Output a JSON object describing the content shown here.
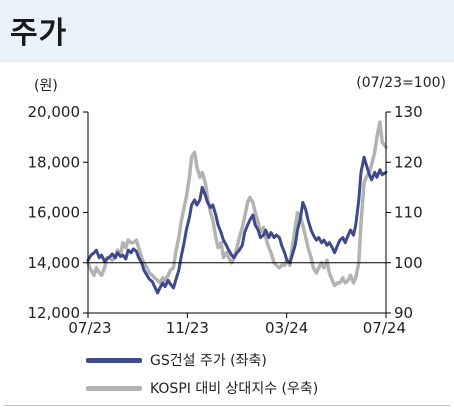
{
  "title": "주가",
  "unit_left": "(원)",
  "unit_right": "(07/23=100)",
  "colors": {
    "primary": "#3f4a8a",
    "secondary": "#b3b3b3",
    "header_bg": "#e9f1fa"
  },
  "chart_data": {
    "type": "line",
    "x_ticks": [
      "07/23",
      "11/23",
      "03/24",
      "07/24"
    ],
    "y_left": {
      "ticks": [
        "12,000",
        "14,000",
        "16,000",
        "18,000",
        "20,000"
      ],
      "lim": [
        12000,
        20000
      ]
    },
    "y_right": {
      "ticks": [
        "90",
        "100",
        "110",
        "120",
        "130"
      ],
      "lim": [
        90,
        130
      ]
    },
    "reference_line": 100,
    "x_range": [
      "2023-07-03",
      "2024-07-31"
    ],
    "series": [
      {
        "name": "GS건설 주가 (좌축)",
        "axis": "left",
        "points": [
          [
            "2023-07-03",
            14100
          ],
          [
            "2023-07-07",
            14300
          ],
          [
            "2023-07-11",
            14400
          ],
          [
            "2023-07-14",
            14500
          ],
          [
            "2023-07-18",
            14200
          ],
          [
            "2023-07-21",
            14300
          ],
          [
            "2023-07-25",
            14050
          ],
          [
            "2023-07-28",
            14150
          ],
          [
            "2023-08-01",
            14250
          ],
          [
            "2023-08-04",
            14350
          ],
          [
            "2023-08-08",
            14200
          ],
          [
            "2023-08-11",
            14400
          ],
          [
            "2023-08-15",
            14250
          ],
          [
            "2023-08-18",
            14300
          ],
          [
            "2023-08-22",
            14150
          ],
          [
            "2023-08-25",
            14500
          ],
          [
            "2023-08-29",
            14400
          ],
          [
            "2023-09-01",
            14550
          ],
          [
            "2023-09-05",
            14450
          ],
          [
            "2023-09-08",
            14200
          ],
          [
            "2023-09-12",
            14000
          ],
          [
            "2023-09-15",
            13700
          ],
          [
            "2023-09-19",
            13500
          ],
          [
            "2023-09-22",
            13350
          ],
          [
            "2023-09-26",
            13250
          ],
          [
            "2023-09-29",
            13050
          ],
          [
            "2023-10-03",
            12800
          ],
          [
            "2023-10-06",
            13000
          ],
          [
            "2023-10-10",
            13200
          ],
          [
            "2023-10-13",
            13050
          ],
          [
            "2023-10-17",
            13300
          ],
          [
            "2023-10-20",
            13150
          ],
          [
            "2023-10-24",
            13000
          ],
          [
            "2023-10-27",
            13300
          ],
          [
            "2023-10-31",
            13700
          ],
          [
            "2023-11-03",
            14200
          ],
          [
            "2023-11-07",
            14800
          ],
          [
            "2023-11-10",
            15300
          ],
          [
            "2023-11-14",
            15800
          ],
          [
            "2023-11-17",
            16300
          ],
          [
            "2023-11-21",
            16500
          ],
          [
            "2023-11-24",
            16300
          ],
          [
            "2023-11-28",
            16500
          ],
          [
            "2023-12-01",
            17000
          ],
          [
            "2023-12-05",
            16700
          ],
          [
            "2023-12-08",
            16400
          ],
          [
            "2023-12-12",
            16200
          ],
          [
            "2023-12-15",
            16300
          ],
          [
            "2023-12-19",
            15900
          ],
          [
            "2023-12-22",
            15500
          ],
          [
            "2023-12-26",
            15200
          ],
          [
            "2023-12-29",
            14900
          ],
          [
            "2024-01-02",
            14700
          ],
          [
            "2024-01-05",
            14500
          ],
          [
            "2024-01-09",
            14300
          ],
          [
            "2024-01-12",
            14200
          ],
          [
            "2024-01-16",
            14400
          ],
          [
            "2024-01-19",
            14500
          ],
          [
            "2024-01-23",
            14700
          ],
          [
            "2024-01-26",
            15200
          ],
          [
            "2024-01-30",
            15500
          ],
          [
            "2024-02-02",
            15700
          ],
          [
            "2024-02-06",
            15900
          ],
          [
            "2024-02-09",
            15500
          ],
          [
            "2024-02-13",
            15300
          ],
          [
            "2024-02-16",
            15000
          ],
          [
            "2024-02-20",
            15100
          ],
          [
            "2024-02-23",
            15300
          ],
          [
            "2024-02-27",
            15000
          ],
          [
            "2024-03-01",
            15200
          ],
          [
            "2024-03-05",
            15000
          ],
          [
            "2024-03-08",
            15100
          ],
          [
            "2024-03-12",
            15000
          ],
          [
            "2024-03-15",
            14700
          ],
          [
            "2024-03-19",
            14400
          ],
          [
            "2024-03-22",
            14100
          ],
          [
            "2024-03-26",
            14000
          ],
          [
            "2024-03-29",
            14300
          ],
          [
            "2024-04-02",
            14700
          ],
          [
            "2024-04-05",
            15300
          ],
          [
            "2024-04-09",
            15800
          ],
          [
            "2024-04-12",
            16400
          ],
          [
            "2024-04-16",
            16100
          ],
          [
            "2024-04-19",
            15700
          ],
          [
            "2024-04-23",
            15300
          ],
          [
            "2024-04-26",
            15100
          ],
          [
            "2024-04-30",
            14900
          ],
          [
            "2024-05-03",
            15000
          ],
          [
            "2024-05-07",
            14800
          ],
          [
            "2024-05-10",
            14900
          ],
          [
            "2024-05-14",
            14700
          ],
          [
            "2024-05-17",
            14800
          ],
          [
            "2024-05-21",
            14600
          ],
          [
            "2024-05-24",
            14400
          ],
          [
            "2024-05-28",
            14700
          ],
          [
            "2024-05-31",
            14900
          ],
          [
            "2024-06-04",
            15000
          ],
          [
            "2024-06-07",
            14800
          ],
          [
            "2024-06-11",
            15100
          ],
          [
            "2024-06-14",
            15300
          ],
          [
            "2024-06-18",
            15100
          ],
          [
            "2024-06-21",
            15500
          ],
          [
            "2024-06-25",
            16500
          ],
          [
            "2024-06-28",
            17600
          ],
          [
            "2024-07-02",
            18200
          ],
          [
            "2024-07-05",
            17900
          ],
          [
            "2024-07-09",
            17500
          ],
          [
            "2024-07-12",
            17300
          ],
          [
            "2024-07-16",
            17600
          ],
          [
            "2024-07-19",
            17400
          ],
          [
            "2024-07-23",
            17700
          ],
          [
            "2024-07-26",
            17500
          ],
          [
            "2024-07-31",
            17600
          ]
        ]
      },
      {
        "name": "KOSPI 대비 상대지수 (우축)",
        "axis": "right",
        "points": [
          [
            "2023-07-03",
            100
          ],
          [
            "2023-07-07",
            98.5
          ],
          [
            "2023-07-11",
            97.5
          ],
          [
            "2023-07-14",
            99
          ],
          [
            "2023-07-18",
            98
          ],
          [
            "2023-07-21",
            97.5
          ],
          [
            "2023-07-25",
            99
          ],
          [
            "2023-07-28",
            101
          ],
          [
            "2023-08-01",
            101
          ],
          [
            "2023-08-04",
            100.5
          ],
          [
            "2023-08-08",
            101
          ],
          [
            "2023-08-11",
            102.5
          ],
          [
            "2023-08-15",
            101.5
          ],
          [
            "2023-08-18",
            104
          ],
          [
            "2023-08-22",
            103
          ],
          [
            "2023-08-25",
            104.5
          ],
          [
            "2023-08-29",
            104
          ],
          [
            "2023-09-01",
            104
          ],
          [
            "2023-09-05",
            104.5
          ],
          [
            "2023-09-08",
            103
          ],
          [
            "2023-09-12",
            101
          ],
          [
            "2023-09-15",
            100
          ],
          [
            "2023-09-19",
            99
          ],
          [
            "2023-09-22",
            98
          ],
          [
            "2023-09-26",
            97.5
          ],
          [
            "2023-09-29",
            97
          ],
          [
            "2023-10-03",
            96.5
          ],
          [
            "2023-10-06",
            96
          ],
          [
            "2023-10-10",
            97
          ],
          [
            "2023-10-13",
            96.5
          ],
          [
            "2023-10-17",
            97.5
          ],
          [
            "2023-10-20",
            98.5
          ],
          [
            "2023-10-24",
            99
          ],
          [
            "2023-10-27",
            102
          ],
          [
            "2023-10-31",
            105
          ],
          [
            "2023-11-03",
            108
          ],
          [
            "2023-11-07",
            111
          ],
          [
            "2023-11-10",
            113
          ],
          [
            "2023-11-14",
            117
          ],
          [
            "2023-11-17",
            121
          ],
          [
            "2023-11-21",
            122
          ],
          [
            "2023-11-24",
            119
          ],
          [
            "2023-11-28",
            117
          ],
          [
            "2023-12-01",
            118
          ],
          [
            "2023-12-05",
            116
          ],
          [
            "2023-12-08",
            113
          ],
          [
            "2023-12-12",
            110
          ],
          [
            "2023-12-15",
            108.5
          ],
          [
            "2023-12-19",
            105
          ],
          [
            "2023-12-22",
            103
          ],
          [
            "2023-12-26",
            104
          ],
          [
            "2023-12-29",
            101
          ],
          [
            "2024-01-02",
            102
          ],
          [
            "2024-01-05",
            101
          ],
          [
            "2024-01-09",
            100
          ],
          [
            "2024-01-12",
            101
          ],
          [
            "2024-01-16",
            103
          ],
          [
            "2024-01-19",
            105
          ],
          [
            "2024-01-23",
            107
          ],
          [
            "2024-01-26",
            109
          ],
          [
            "2024-01-30",
            112
          ],
          [
            "2024-02-02",
            113
          ],
          [
            "2024-02-06",
            112
          ],
          [
            "2024-02-09",
            110
          ],
          [
            "2024-02-13",
            108
          ],
          [
            "2024-02-16",
            106
          ],
          [
            "2024-02-20",
            107
          ],
          [
            "2024-02-23",
            105
          ],
          [
            "2024-02-27",
            103
          ],
          [
            "2024-03-01",
            102
          ],
          [
            "2024-03-05",
            100
          ],
          [
            "2024-03-08",
            99.5
          ],
          [
            "2024-03-12",
            99
          ],
          [
            "2024-03-15",
            99.5
          ],
          [
            "2024-03-19",
            99.5
          ],
          [
            "2024-03-22",
            100.5
          ],
          [
            "2024-03-26",
            99.5
          ],
          [
            "2024-03-29",
            103
          ],
          [
            "2024-04-02",
            107
          ],
          [
            "2024-04-05",
            110
          ],
          [
            "2024-04-09",
            109
          ],
          [
            "2024-04-12",
            107.5
          ],
          [
            "2024-04-16",
            105
          ],
          [
            "2024-04-19",
            103
          ],
          [
            "2024-04-23",
            101
          ],
          [
            "2024-04-26",
            99
          ],
          [
            "2024-04-30",
            98
          ],
          [
            "2024-05-03",
            99
          ],
          [
            "2024-05-07",
            100
          ],
          [
            "2024-05-10",
            99
          ],
          [
            "2024-05-14",
            100.5
          ],
          [
            "2024-05-17",
            98
          ],
          [
            "2024-05-21",
            96.5
          ],
          [
            "2024-05-24",
            95.5
          ],
          [
            "2024-05-28",
            96
          ],
          [
            "2024-05-31",
            96
          ],
          [
            "2024-06-04",
            97
          ],
          [
            "2024-06-07",
            96
          ],
          [
            "2024-06-11",
            96.5
          ],
          [
            "2024-06-14",
            97.5
          ],
          [
            "2024-06-18",
            96
          ],
          [
            "2024-06-21",
            97
          ],
          [
            "2024-06-25",
            100
          ],
          [
            "2024-06-28",
            108
          ],
          [
            "2024-07-02",
            116
          ],
          [
            "2024-07-05",
            117
          ],
          [
            "2024-07-09",
            118
          ],
          [
            "2024-07-12",
            119.5
          ],
          [
            "2024-07-16",
            122
          ],
          [
            "2024-07-19",
            125
          ],
          [
            "2024-07-23",
            128
          ],
          [
            "2024-07-26",
            124
          ],
          [
            "2024-07-31",
            123
          ]
        ]
      }
    ]
  }
}
